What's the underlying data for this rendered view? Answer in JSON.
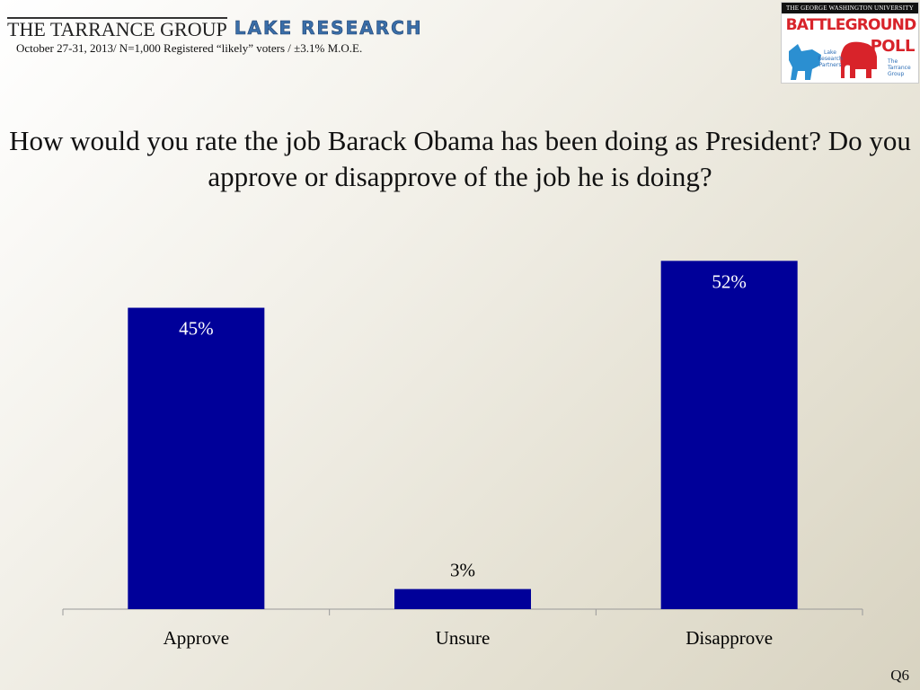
{
  "header": {
    "tarrance_logo_text": "THE TARRANCE GROUP",
    "lake_logo_text": "LAKE RESEARCH",
    "survey_meta": "October 27-31, 2013/ N=1,000 Registered “likely” voters / ±3.1% M.O.E."
  },
  "battleground_logo": {
    "university": "THE GEORGE WASHINGTON UNIVERSITY",
    "title": "BATTLEGROUND",
    "poll": "POLL",
    "lake_text": "Lake Research Partners",
    "tarrance_text": "The Tarrance Group"
  },
  "question": "How would you rate the job Barack Obama has been doing as President? Do you approve or disapprove of the job he is doing?",
  "slide_number": "Q6",
  "colors": {
    "bar": "#000099",
    "axis": "#999999"
  },
  "chart_data": {
    "type": "bar",
    "categories": [
      "Approve",
      "Unsure",
      "Disapprove"
    ],
    "values": [
      45,
      3,
      52
    ],
    "data_labels": [
      "45%",
      "3%",
      "52%"
    ],
    "ylim": [
      0,
      55
    ],
    "grid": false,
    "legend": false
  }
}
